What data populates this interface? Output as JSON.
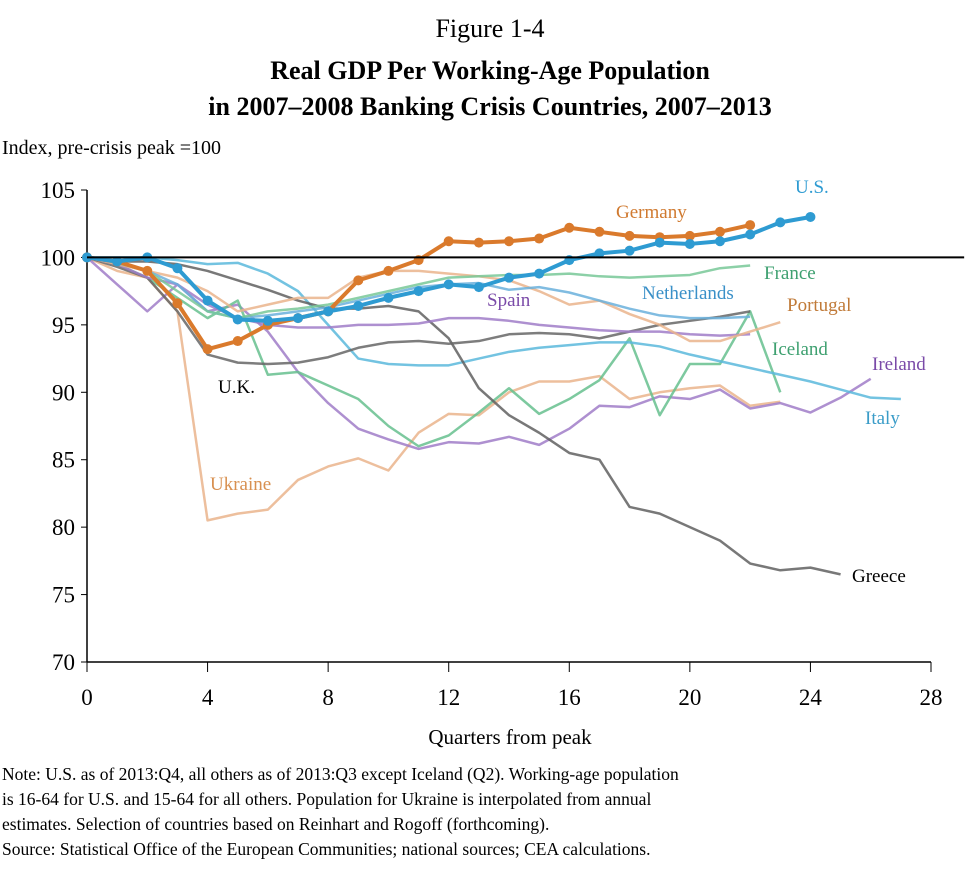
{
  "figure_label": "Figure 1-4",
  "notes": [
    "Note: U.S. as of 2013:Q4, all others as of 2013:Q3 except Iceland (Q2). Working-age population",
    "is 16-64 for U.S. and 15-64 for all others. Population for Ukraine is interpolated from annual",
    "estimates. Selection of countries based on Reinhart and Rogoff (forthcoming).",
    "Source: Statistical Office  of the European Communities; national sources;  CEA calculations."
  ],
  "chart_data": {
    "type": "line",
    "title": "Real GDP  Per Working-Age Population",
    "subtitle": "in 2007–2008 Banking Crisis Countries,  2007–2013",
    "xlabel": "Quarters from peak",
    "ylabel": "Index, pre-crisis peak =100",
    "xlim": [
      0,
      28
    ],
    "ylim": [
      70,
      105
    ],
    "xticks": [
      "0",
      "4",
      "8",
      "12",
      "16",
      "20",
      "24",
      "28"
    ],
    "yticks": [
      "70",
      "75",
      "80",
      "85",
      "90",
      "95",
      "100",
      "105"
    ],
    "reference_line": 100,
    "grid": false,
    "series": [
      {
        "name": "Ukraine",
        "color": "#eab48c",
        "markers": false,
        "values": [
          100,
          99,
          98.5,
          96,
          80.5,
          81,
          81.3,
          83.5,
          84.5,
          85.1,
          84.2,
          87,
          88.4,
          88.3,
          90,
          90.8,
          90.8,
          91.2,
          89.5,
          90,
          90.3,
          90.5,
          89,
          89.3
        ]
      },
      {
        "name": "Ireland",
        "color": "#a07cc8",
        "markers": false,
        "values": [
          100,
          98,
          96,
          98,
          96,
          96.5,
          94.5,
          91.5,
          89.2,
          87.3,
          86.5,
          85.8,
          86.3,
          86.2,
          86.7,
          86.1,
          87.3,
          89,
          88.9,
          89.7,
          89.5,
          90.2,
          88.8,
          89.2,
          88.5,
          89.6,
          91
        ]
      },
      {
        "name": "Iceland",
        "color": "#66c08e",
        "markers": false,
        "values": [
          100,
          99.5,
          98.5,
          97,
          95.5,
          96.8,
          91.3,
          91.5,
          90.5,
          89.5,
          87.5,
          86,
          86.8,
          88.5,
          90.3,
          88.4,
          89.5,
          90.9,
          94,
          88.3,
          92.1,
          92.1,
          96,
          90
        ]
      },
      {
        "name": "Italy",
        "color": "#5ab9dc",
        "markers": false,
        "values": [
          100,
          100,
          100,
          99.8,
          99.5,
          99.6,
          98.8,
          97.5,
          95,
          92.5,
          92.1,
          92,
          92,
          92.5,
          93,
          93.3,
          93.5,
          93.7,
          93.7,
          93.4,
          92.8,
          92.3,
          91.8,
          91.3,
          90.8,
          90.2,
          89.6,
          89.5
        ]
      },
      {
        "name": "Greece",
        "color": "#606060",
        "markers": false,
        "values": [
          100,
          99.7,
          99.7,
          99.5,
          99,
          98.3,
          97.6,
          96.8,
          96.2,
          96.2,
          96.4,
          96,
          94,
          90.3,
          88.3,
          87,
          85.5,
          85,
          81.5,
          81,
          80,
          79,
          77.3,
          76.8,
          77,
          76.5
        ]
      },
      {
        "name": "U.K.",
        "color": "#666666",
        "markers": false,
        "values": [
          100,
          99.3,
          98.5,
          96,
          92.8,
          92.2,
          92.1,
          92.2,
          92.6,
          93.3,
          93.7,
          93.8,
          93.6,
          93.8,
          94.3,
          94.4,
          94.3,
          94,
          94.5,
          95,
          95.3,
          95.6,
          96
        ]
      },
      {
        "name": "Spain",
        "color": "#a07cc8",
        "markers": false,
        "values": [
          100,
          99.5,
          98.5,
          98,
          96.5,
          95.5,
          95,
          94.8,
          94.8,
          95,
          95,
          95.1,
          95.5,
          95.5,
          95.3,
          95,
          94.8,
          94.6,
          94.5,
          94.5,
          94.3,
          94.2,
          94.3
        ]
      },
      {
        "name": "Portugal",
        "color": "#eab48c",
        "markers": false,
        "values": [
          100,
          99.5,
          99,
          98.5,
          97.5,
          96,
          96.5,
          97,
          97,
          98.5,
          99,
          99,
          98.8,
          98.6,
          98.3,
          97.5,
          96.5,
          96.8,
          95.8,
          95,
          93.8,
          93.8,
          94.5,
          95.2
        ]
      },
      {
        "name": "Netherlands",
        "color": "#6ab0dc",
        "markers": false,
        "values": [
          100,
          99.6,
          99,
          98,
          96,
          95.5,
          95.7,
          96,
          96.3,
          96.8,
          97.3,
          97.8,
          98,
          98.1,
          97.6,
          97.8,
          97.4,
          96.8,
          96.2,
          95.7,
          95.5,
          95.5,
          95.6
        ]
      },
      {
        "name": "France",
        "color": "#78c898",
        "markers": false,
        "values": [
          100,
          99.6,
          99,
          97.5,
          96,
          95.5,
          96,
          96.2,
          96.5,
          97,
          97.5,
          98,
          98.5,
          98.6,
          98.7,
          98.7,
          98.8,
          98.6,
          98.5,
          98.6,
          98.7,
          99.2,
          99.4
        ]
      },
      {
        "name": "Germany",
        "color": "#da7a2c",
        "markers": true,
        "values": [
          100,
          99.7,
          99,
          96.6,
          93.2,
          93.8,
          95,
          95.5,
          96,
          98.3,
          99,
          99.8,
          101.2,
          101.1,
          101.2,
          101.4,
          102.2,
          101.9,
          101.6,
          101.5,
          101.6,
          101.9,
          102.4
        ]
      },
      {
        "name": "U.S.",
        "color": "#2e9bd2",
        "markers": true,
        "values": [
          100,
          99.7,
          100,
          99.2,
          96.8,
          95.4,
          95.3,
          95.5,
          96,
          96.4,
          97,
          97.5,
          98,
          97.8,
          98.5,
          98.8,
          99.8,
          100.3,
          100.5,
          101.1,
          101,
          101.2,
          101.7,
          102.6,
          103
        ]
      }
    ]
  }
}
